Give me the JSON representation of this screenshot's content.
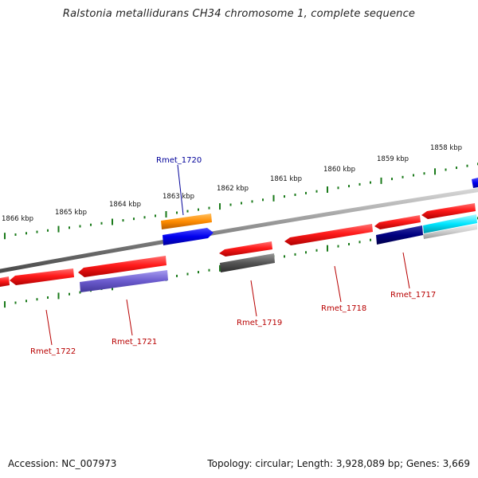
{
  "title": "Ralstonia metallidurans CH34 chromosome 1, complete sequence",
  "footer": {
    "accession": "Accession: NC_007973",
    "topology": "Topology: circular; Length: 3,928,089 bp; Genes: 3,669"
  },
  "ticks": [
    "1866 kbp",
    "1865 kbp",
    "1864 kbp",
    "1863 kbp",
    "1862 kbp",
    "1861 kbp",
    "1860 kbp",
    "1859 kbp",
    "1858 kbp"
  ],
  "gene_labels": [
    {
      "id": "Rmet_1720",
      "color": "#000099"
    },
    {
      "id": "Rmet_1722",
      "color": "#b80000"
    },
    {
      "id": "Rmet_1721",
      "color": "#b80000"
    },
    {
      "id": "Rmet_1719",
      "color": "#b80000"
    },
    {
      "id": "Rmet_1718",
      "color": "#b80000"
    },
    {
      "id": "Rmet_1717",
      "color": "#b80000"
    }
  ],
  "colors": {
    "forward_gene": "#ff0000",
    "reverse_gene": "#ff0000",
    "orange_feature": "#ff8c00",
    "blue_feature": "#0000ee",
    "navy_feature": "#000080",
    "purple_feature": "#6a5acd",
    "gray_feature": "#555555",
    "cyan_feature": "#00e5ff",
    "tick_green": "#1a7a1a",
    "backbone": "#888888"
  }
}
